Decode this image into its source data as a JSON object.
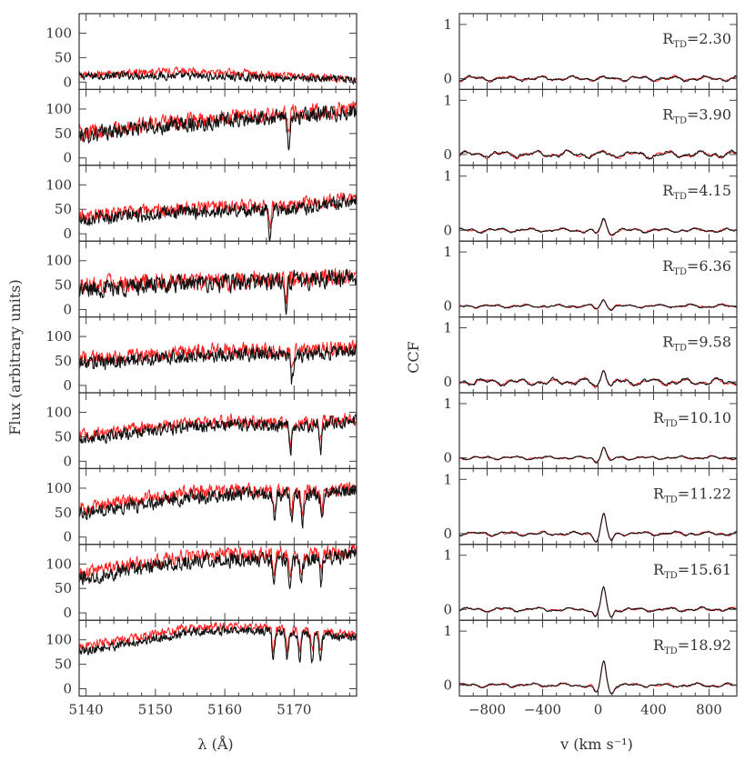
{
  "chart_data": [
    {
      "type": "line",
      "layout": "stacked-panels",
      "xlabel": "λ (Å)",
      "ylabel": "Flux (arbitrary units)",
      "xlim": [
        5139,
        5179
      ],
      "ylim": [
        -15,
        140
      ],
      "xticks": [
        5140,
        5150,
        5160,
        5170
      ],
      "yticks": [
        0,
        50,
        100
      ],
      "series_colors": [
        "#111111",
        "#ff2020"
      ],
      "panels": [
        {
          "index": 1,
          "black_level": [
            12,
            14,
            12,
            10,
            8,
            4
          ],
          "red_level": [
            16,
            20,
            22,
            18,
            12,
            6
          ],
          "noise": 7,
          "absorption_lines": []
        },
        {
          "index": 2,
          "black_level": [
            45,
            60,
            70,
            78,
            85,
            95
          ],
          "red_level": [
            50,
            65,
            78,
            85,
            92,
            100
          ],
          "noise": 14,
          "absorption_lines": [
            5169.2
          ]
        },
        {
          "index": 3,
          "black_level": [
            30,
            38,
            45,
            48,
            52,
            70
          ],
          "red_level": [
            36,
            44,
            52,
            56,
            60,
            75
          ],
          "noise": 12,
          "absorption_lines": [
            5166.5
          ]
        },
        {
          "index": 4,
          "black_level": [
            40,
            48,
            52,
            55,
            60,
            68
          ],
          "red_level": [
            46,
            54,
            58,
            60,
            66,
            72
          ],
          "noise": 16,
          "absorption_lines": [
            5168.8
          ]
        },
        {
          "index": 5,
          "black_level": [
            45,
            52,
            60,
            65,
            62,
            72
          ],
          "red_level": [
            52,
            60,
            68,
            72,
            70,
            78
          ],
          "noise": 13,
          "absorption_lines": [
            5169.7
          ]
        },
        {
          "index": 6,
          "black_level": [
            45,
            58,
            70,
            75,
            70,
            82
          ],
          "red_level": [
            52,
            66,
            80,
            82,
            78,
            88
          ],
          "noise": 11,
          "absorption_lines": [
            5169.5,
            5173.8
          ]
        },
        {
          "index": 7,
          "black_level": [
            50,
            65,
            80,
            88,
            85,
            95
          ],
          "red_level": [
            58,
            75,
            92,
            96,
            92,
            100
          ],
          "noise": 12,
          "absorption_lines": [
            5167.2,
            5169.6,
            5171.2,
            5174.0
          ]
        },
        {
          "index": 8,
          "black_level": [
            70,
            90,
            105,
            110,
            108,
            120
          ],
          "red_level": [
            78,
            100,
            118,
            122,
            118,
            128
          ],
          "noise": 13,
          "absorption_lines": [
            5167.1,
            5169.4,
            5171.0,
            5173.9
          ]
        },
        {
          "index": 9,
          "black_level": [
            75,
            95,
            115,
            120,
            112,
            105
          ],
          "red_level": [
            85,
            105,
            125,
            128,
            120,
            110
          ],
          "noise": 8,
          "absorption_lines": [
            5167.0,
            5169.0,
            5170.8,
            5172.6,
            5173.8
          ]
        }
      ]
    },
    {
      "type": "line",
      "layout": "stacked-panels",
      "xlabel": "v (km s⁻¹)",
      "ylabel": "CCF",
      "xlim": [
        -1000,
        1000
      ],
      "ylim": [
        -0.2,
        1.2
      ],
      "xticks": [
        -800,
        -400,
        0,
        400,
        800
      ],
      "yticks": [
        0,
        1
      ],
      "series_colors": [
        "#111111",
        "#ff2020"
      ],
      "panels": [
        {
          "label_main": "R",
          "label_sub": "TD",
          "label_value": "=2.30",
          "peak": 0.0,
          "noise": 0.035
        },
        {
          "label_main": "R",
          "label_sub": "TD",
          "label_value": "=3.90",
          "peak": 0.05,
          "noise": 0.05
        },
        {
          "label_main": "R",
          "label_sub": "TD",
          "label_value": "=4.15",
          "peak": 0.2,
          "noise": 0.03
        },
        {
          "label_main": "R",
          "label_sub": "TD",
          "label_value": "=6.36",
          "peak": 0.12,
          "noise": 0.025
        },
        {
          "label_main": "R",
          "label_sub": "TD",
          "label_value": "=9.58",
          "peak": 0.25,
          "noise": 0.05
        },
        {
          "label_main": "R",
          "label_sub": "TD",
          "label_value": "=10.10",
          "peak": 0.2,
          "noise": 0.025
        },
        {
          "label_main": "R",
          "label_sub": "TD",
          "label_value": "=11.22",
          "peak": 0.35,
          "noise": 0.03
        },
        {
          "label_main": "R",
          "label_sub": "TD",
          "label_value": "=15.61",
          "peak": 0.4,
          "noise": 0.03
        },
        {
          "label_main": "R",
          "label_sub": "TD",
          "label_value": "=18.92",
          "peak": 0.45,
          "noise": 0.03
        }
      ]
    }
  ]
}
